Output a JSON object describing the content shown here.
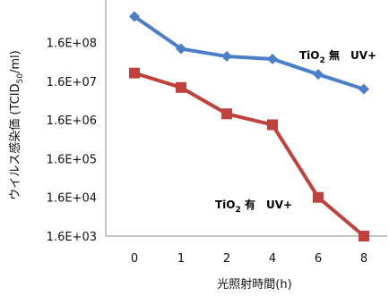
{
  "chart_data": {
    "type": "line",
    "x_categories": [
      "0",
      "1",
      "2",
      "4",
      "6",
      "8"
    ],
    "xlabel": "光照射時間(h)",
    "ylabel": "ウイルス感染価 (TCID50/ml)",
    "y_scale": "log",
    "y_ticks": [
      "1.6E+03",
      "1.6E+04",
      "1.6E+05",
      "1.6E+06",
      "1.6E+07",
      "1.6E+08"
    ],
    "ylim": [
      1600,
      2000000000.0
    ],
    "series": [
      {
        "name": "TiO2 無 UV+",
        "label_parts": [
          "TiO",
          "2",
          " 無　UV+"
        ],
        "color": "#4a7ec9",
        "marker": "diamond",
        "values": [
          750000000,
          110000000,
          70000000,
          60000000,
          24000000,
          10000000
        ]
      },
      {
        "name": "TiO2 有 UV+",
        "label_parts": [
          "TiO",
          "2",
          " 有　UV+"
        ],
        "color": "#c0413c",
        "marker": "square",
        "values": [
          26000000,
          11000000,
          2300000,
          1200000,
          16000,
          1600
        ]
      }
    ]
  }
}
